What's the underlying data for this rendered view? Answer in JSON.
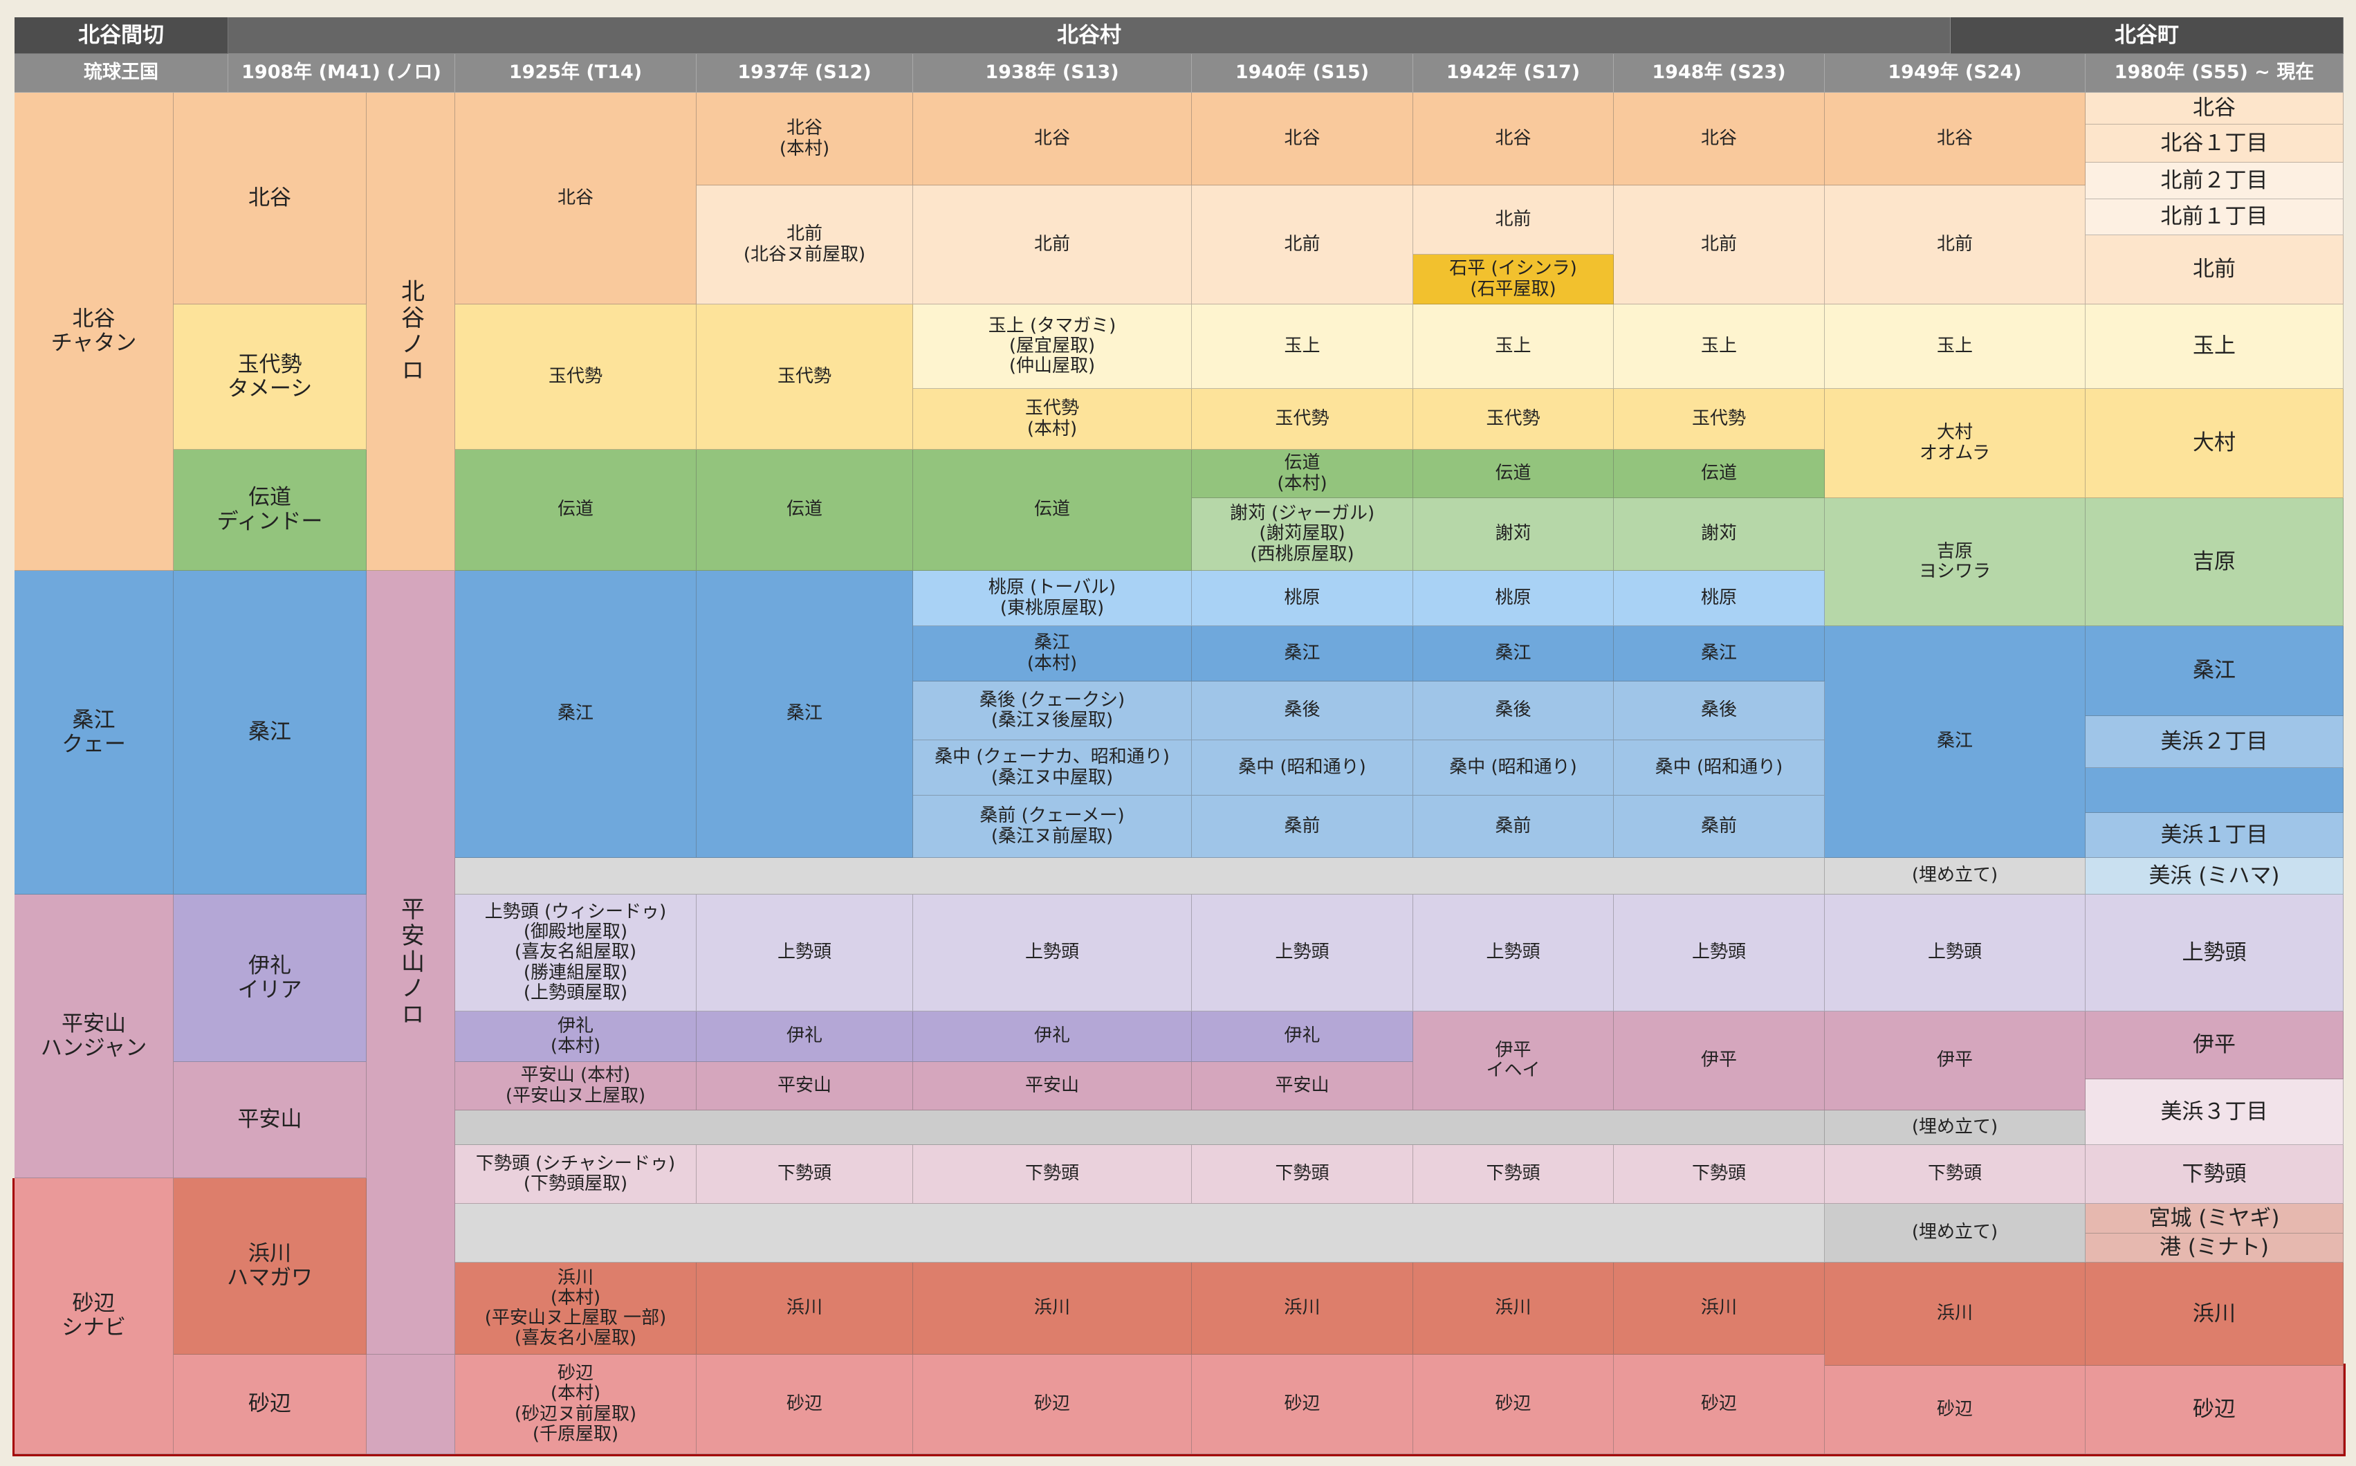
{
  "colors": {
    "hdr_dark": "#4d4d4d",
    "hdr_mid": "#666666",
    "hdr_gray": "#8c8c8c",
    "orange_dark": "#f9c99c",
    "orange_light": "#fde5cb",
    "orange_pale": "#fdf0e2",
    "gold": "#f2c12e",
    "yellow_dark": "#fde39a",
    "yellow_light": "#fef4cf",
    "green_dark": "#93c47d",
    "green_light": "#b6d7a8",
    "blue_dark": "#6fa8dc",
    "blue_mid": "#9fc5e8",
    "blue_light": "#a9d2f5",
    "blue_pale": "#c9e0f0",
    "purple_dark": "#b4a7d6",
    "purple_light": "#d9d2e9",
    "pink_dark": "#d5a6bd",
    "pink_light": "#ead1dc",
    "pink_pale": "#f2e3ea",
    "gray_fill": "#d9d9d9",
    "gray_dark": "#cccccc",
    "red_dark": "#dd7e6b",
    "red_light": "#ea9999",
    "red_pale": "#e6b8af",
    "outline_red": "#a40000"
  },
  "header": {
    "r1": [
      "北谷間切",
      "北谷村",
      "北谷町"
    ],
    "r2": [
      "琉球王国",
      "1908年 (M41) (ノロ)",
      "1925年 (T14)",
      "1937年 (S12)",
      "1938年 (S13)",
      "1940年 (S15)",
      "1942年 (S17)",
      "1948年 (S23)",
      "1949年 (S24)",
      "1980年 (S55) ~ 現在"
    ]
  },
  "ryukyu": [
    "北谷\nチャタン",
    "桑江\nクェー",
    "平安山\nハンジャン",
    "砂辺\nシナビ"
  ],
  "meiji": [
    "北谷",
    "玉代勢\nタメーシ",
    "伝道\nディンドー",
    "桑江",
    "伊礼\nイリア",
    "平安山",
    "浜川\nハマガワ",
    "砂辺"
  ],
  "noro": [
    "北谷ノロ",
    "平安山ノロ"
  ],
  "t14": [
    "北谷",
    "玉代勢",
    "伝道",
    "桑江",
    "上勢頭 (ウィシードゥ)\n(御殿地屋取)\n(喜友名組屋取)\n(勝連組屋取)\n(上勢頭屋取)",
    "伊礼\n(本村)",
    "平安山 (本村)\n(平安山ヌ上屋取)",
    "下勢頭 (シチャシードゥ)\n(下勢頭屋取)",
    "浜川\n(本村)\n(平安山ヌ上屋取 一部)\n(喜友名小屋取)",
    "砂辺\n(本村)\n(砂辺ヌ前屋取)\n(千原屋取)"
  ],
  "s12": [
    "北谷\n(本村)",
    "北前\n(北谷ヌ前屋取)",
    "玉代勢",
    "伝道",
    "桑江",
    "上勢頭",
    "伊礼",
    "平安山",
    "下勢頭",
    "浜川",
    "砂辺"
  ],
  "s13": [
    "北谷",
    "北前",
    "玉上 (タマガミ)\n(屋宜屋取)\n(仲山屋取)",
    "玉代勢\n(本村)",
    "伝道",
    "桃原 (トーバル)\n(東桃原屋取)",
    "桑江\n(本村)",
    "桑後 (クェークシ)\n(桑江ヌ後屋取)",
    "桑中 (クェーナカ、昭和通り)\n(桑江ヌ中屋取)",
    "桑前 (クェーメー)\n(桑江ヌ前屋取)",
    "上勢頭",
    "伊礼",
    "平安山",
    "下勢頭",
    "浜川",
    "砂辺"
  ],
  "s15": [
    "北谷",
    "北前",
    "玉上",
    "玉代勢",
    "伝道\n(本村)",
    "謝苅 (ジャーガル)\n(謝苅屋取)\n(西桃原屋取)",
    "桃原",
    "桑江",
    "桑後",
    "桑中 (昭和通り)",
    "桑前",
    "上勢頭",
    "伊礼",
    "平安山",
    "下勢頭",
    "浜川",
    "砂辺"
  ],
  "s17": [
    "北谷",
    "北前",
    "石平 (イシンラ)\n(石平屋取)",
    "玉上",
    "玉代勢",
    "伝道",
    "謝苅",
    "桃原",
    "桑江",
    "桑後",
    "桑中 (昭和通り)",
    "桑前",
    "上勢頭",
    "伊平\nイヘイ",
    "下勢頭",
    "浜川",
    "砂辺"
  ],
  "s23": [
    "北谷",
    "北前",
    "玉上",
    "玉代勢",
    "伝道",
    "謝苅",
    "桃原",
    "桑江",
    "桑後",
    "桑中 (昭和通り)",
    "桑前",
    "上勢頭",
    "伊平",
    "下勢頭",
    "浜川",
    "砂辺"
  ],
  "s24": [
    "北谷",
    "北前",
    "玉上",
    "大村\nオオムラ",
    "吉原\nヨシワラ",
    "桑江",
    "(埋め立て)",
    "上勢頭",
    "伊平",
    "(埋め立て)",
    "下勢頭",
    "(埋め立て)",
    "浜川",
    "砂辺"
  ],
  "s55": [
    "北谷",
    "北谷１丁目",
    "北前２丁目",
    "北前１丁目",
    "北前",
    "玉上",
    "大村",
    "吉原",
    "桑江",
    "美浜２丁目",
    "美浜１丁目",
    "美浜 (ミハマ)",
    "上勢頭",
    "伊平",
    "美浜３丁目",
    "下勢頭",
    "宮城 (ミヤギ)",
    "港 (ミナト)",
    "浜川",
    "砂辺"
  ]
}
